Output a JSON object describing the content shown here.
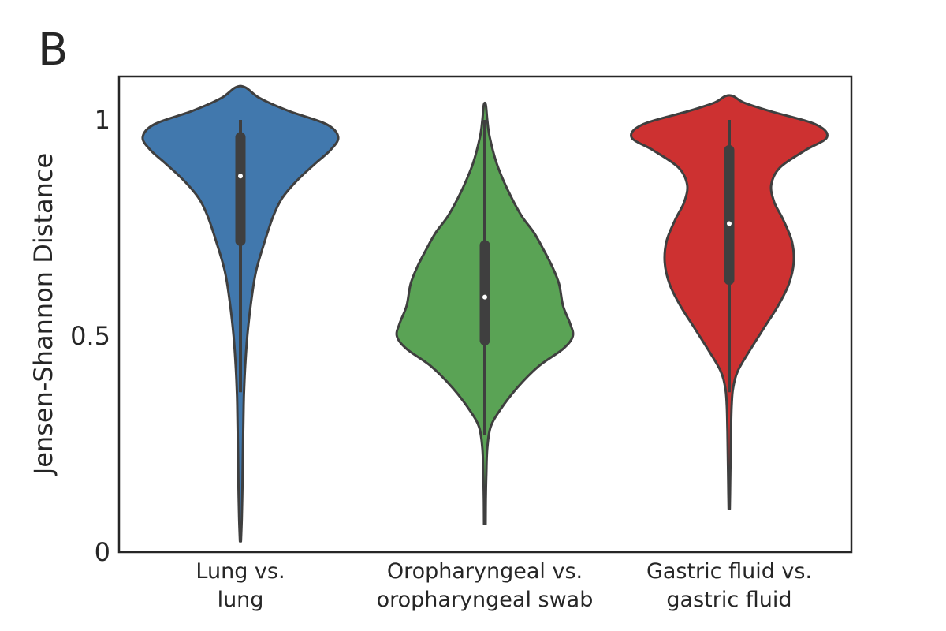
{
  "panel_label": "B",
  "chart_data": {
    "type": "violin",
    "title": "",
    "xlabel": "",
    "ylabel": "Jensen-Shannon Distance",
    "ylim": [
      0,
      1.1
    ],
    "yticks": [
      {
        "value": 0,
        "label": "0"
      },
      {
        "value": 0.5,
        "label": "0.5"
      },
      {
        "value": 1,
        "label": "1"
      }
    ],
    "grid": false,
    "legend": "none",
    "categories": [
      {
        "lines": [
          "Lung vs.",
          "lung"
        ]
      },
      {
        "lines": [
          "Oropharyngeal vs.",
          "oropharyngeal swab"
        ]
      },
      {
        "lines": [
          "Gastric fluid vs.",
          "gastric fluid"
        ]
      }
    ],
    "series": [
      {
        "color": "#4178ad",
        "median": 0.87,
        "q1": 0.72,
        "q3": 0.96,
        "whisker_low": 0.37,
        "whisker_high": 1.0,
        "density": [
          [
            0.025,
            0.005
          ],
          [
            0.08,
            0.014
          ],
          [
            0.15,
            0.02
          ],
          [
            0.22,
            0.024
          ],
          [
            0.3,
            0.03
          ],
          [
            0.36,
            0.035
          ],
          [
            0.42,
            0.046
          ],
          [
            0.5,
            0.07
          ],
          [
            0.58,
            0.11
          ],
          [
            0.65,
            0.16
          ],
          [
            0.72,
            0.25
          ],
          [
            0.78,
            0.34
          ],
          [
            0.82,
            0.43
          ],
          [
            0.86,
            0.58
          ],
          [
            0.9,
            0.77
          ],
          [
            0.93,
            0.92
          ],
          [
            0.96,
            1.0
          ],
          [
            0.99,
            0.88
          ],
          [
            1.02,
            0.5
          ],
          [
            1.05,
            0.2
          ],
          [
            1.075,
            0.05
          ]
        ]
      },
      {
        "color": "#5aa355",
        "median": 0.59,
        "q1": 0.49,
        "q3": 0.71,
        "whisker_low": 0.27,
        "whisker_high": 1.0,
        "density": [
          [
            0.065,
            0.008
          ],
          [
            0.12,
            0.01
          ],
          [
            0.18,
            0.015
          ],
          [
            0.24,
            0.025
          ],
          [
            0.29,
            0.06
          ],
          [
            0.33,
            0.16
          ],
          [
            0.38,
            0.33
          ],
          [
            0.43,
            0.55
          ],
          [
            0.47,
            0.8
          ],
          [
            0.5,
            0.9
          ],
          [
            0.53,
            0.87
          ],
          [
            0.57,
            0.8
          ],
          [
            0.62,
            0.76
          ],
          [
            0.66,
            0.69
          ],
          [
            0.7,
            0.6
          ],
          [
            0.74,
            0.5
          ],
          [
            0.78,
            0.37
          ],
          [
            0.84,
            0.23
          ],
          [
            0.9,
            0.12
          ],
          [
            0.96,
            0.05
          ],
          [
            1.0,
            0.025
          ],
          [
            1.035,
            0.01
          ]
        ]
      },
      {
        "color": "#cd3131",
        "median": 0.76,
        "q1": 0.63,
        "q3": 0.93,
        "whisker_low": 0.37,
        "whisker_high": 1.0,
        "density": [
          [
            0.1,
            0.006
          ],
          [
            0.16,
            0.01
          ],
          [
            0.22,
            0.014
          ],
          [
            0.28,
            0.018
          ],
          [
            0.34,
            0.025
          ],
          [
            0.38,
            0.04
          ],
          [
            0.42,
            0.09
          ],
          [
            0.47,
            0.22
          ],
          [
            0.52,
            0.36
          ],
          [
            0.57,
            0.5
          ],
          [
            0.62,
            0.61
          ],
          [
            0.67,
            0.66
          ],
          [
            0.72,
            0.64
          ],
          [
            0.77,
            0.55
          ],
          [
            0.81,
            0.46
          ],
          [
            0.85,
            0.43
          ],
          [
            0.89,
            0.52
          ],
          [
            0.93,
            0.78
          ],
          [
            0.96,
            1.0
          ],
          [
            0.99,
            0.88
          ],
          [
            1.02,
            0.42
          ],
          [
            1.04,
            0.15
          ],
          [
            1.055,
            0.04
          ]
        ]
      }
    ]
  }
}
